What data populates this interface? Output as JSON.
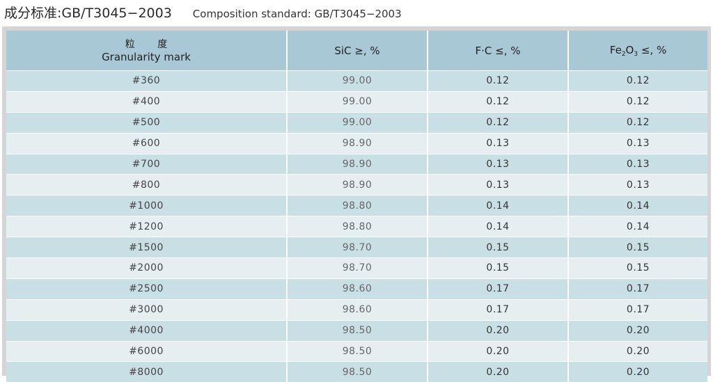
{
  "header": {
    "title_cn": "成分标准:GB/T3045−2003",
    "title_en": "Composition standard: GB/T3045−2003"
  },
  "table": {
    "columns": {
      "mark_cn": "粒 度",
      "mark_en": "Granularity mark",
      "sic": "SiC ≥, %",
      "fc": "F·C ≤, %",
      "fe_prefix": "Fe",
      "fe_sub1": "2",
      "fe_mid": "O",
      "fe_sub2": "3",
      "fe_suffix": " ≤, %"
    },
    "rows": [
      {
        "mark": "#360",
        "sic": "99.00",
        "fc": "0.12",
        "fe2o3": "0.12"
      },
      {
        "mark": "#400",
        "sic": "99.00",
        "fc": "0.12",
        "fe2o3": "0.12"
      },
      {
        "mark": "#500",
        "sic": "99.00",
        "fc": "0.12",
        "fe2o3": "0.12"
      },
      {
        "mark": "#600",
        "sic": "98.90",
        "fc": "0.13",
        "fe2o3": "0.13"
      },
      {
        "mark": "#700",
        "sic": "98.90",
        "fc": "0.13",
        "fe2o3": "0.13"
      },
      {
        "mark": "#800",
        "sic": "98.90",
        "fc": "0.13",
        "fe2o3": "0.13"
      },
      {
        "mark": "#1000",
        "sic": "98.80",
        "fc": "0.14",
        "fe2o3": "0.14"
      },
      {
        "mark": "#1200",
        "sic": "98.80",
        "fc": "0.14",
        "fe2o3": "0.14"
      },
      {
        "mark": "#1500",
        "sic": "98.70",
        "fc": "0.15",
        "fe2o3": "0.15"
      },
      {
        "mark": "#2000",
        "sic": "98.70",
        "fc": "0.15",
        "fe2o3": "0.15"
      },
      {
        "mark": "#2500",
        "sic": "98.60",
        "fc": "0.17",
        "fe2o3": "0.17"
      },
      {
        "mark": "#3000",
        "sic": "98.60",
        "fc": "0.17",
        "fe2o3": "0.17"
      },
      {
        "mark": "#4000",
        "sic": "98.50",
        "fc": "0.20",
        "fe2o3": "0.20"
      },
      {
        "mark": "#6000",
        "sic": "98.50",
        "fc": "0.20",
        "fe2o3": "0.20"
      },
      {
        "mark": "#8000",
        "sic": "98.50",
        "fc": "0.20",
        "fe2o3": "0.20"
      }
    ]
  },
  "colors": {
    "header_bg": "#a9c8d6",
    "row_odd_bg": "#c9dfe6",
    "row_even_bg": "#e5eff2",
    "frame_bg": "#d5d5d5"
  }
}
